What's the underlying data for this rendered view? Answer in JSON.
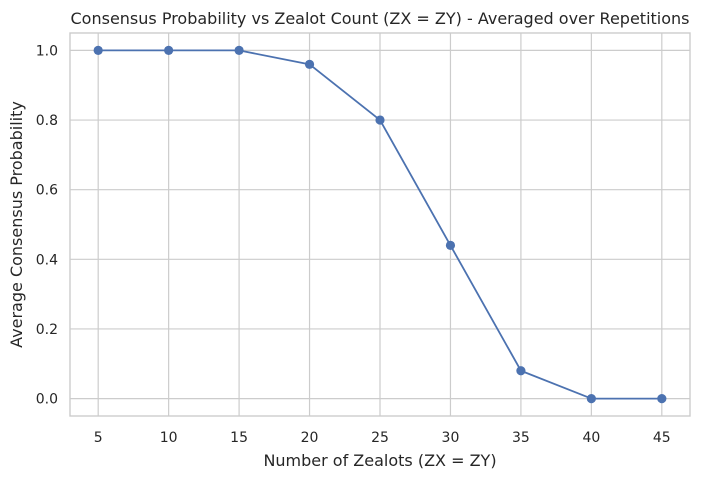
{
  "chart_data": {
    "type": "line",
    "title": "Consensus Probability vs Zealot Count (ZX = ZY) - Averaged over Repetitions",
    "xlabel": "Number of Zealots (ZX = ZY)",
    "ylabel": "Average Consensus Probability",
    "x": [
      5,
      10,
      15,
      20,
      25,
      30,
      35,
      40,
      45
    ],
    "series": [
      {
        "values": [
          1.0,
          1.0,
          1.0,
          0.96,
          0.8,
          0.44,
          0.08,
          0.0,
          0.0
        ],
        "color": "#4c72b0",
        "marker": "circle"
      }
    ],
    "xticks": [
      "5",
      "10",
      "15",
      "20",
      "25",
      "30",
      "35",
      "40",
      "45"
    ],
    "yticks": [
      "0.0",
      "0.2",
      "0.4",
      "0.6",
      "0.8",
      "1.0"
    ],
    "xlim": [
      3,
      47
    ],
    "ylim": [
      -0.05,
      1.05
    ],
    "grid": true,
    "style": "whitegrid"
  }
}
